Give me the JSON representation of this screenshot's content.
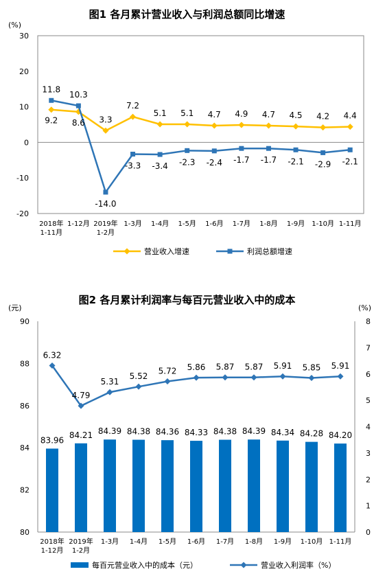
{
  "chart_data": [
    {
      "type": "line",
      "title": "图1  各月累计营业收入与利润总额同比增速",
      "ylabel": "(%)",
      "ylim": [
        -20,
        30
      ],
      "yticks": [
        "30",
        "20",
        "10",
        "0",
        "-10",
        "-20"
      ],
      "categories": [
        "2018年\n1-11月",
        "1-12月",
        "2019年\n1-2月",
        "1-3月",
        "1-4月",
        "1-5月",
        "1-6月",
        "1-7月",
        "1-8月",
        "1-9月",
        "1-10月",
        "1-11月"
      ],
      "series": [
        {
          "name": "营业收入增速",
          "color": "#FFC000",
          "values": [
            9.2,
            8.6,
            3.3,
            7.2,
            5.1,
            5.1,
            4.7,
            4.9,
            4.7,
            4.5,
            4.2,
            4.4
          ],
          "labels": [
            "9.2",
            "8.6",
            "3.3",
            "7.2",
            "5.1",
            "5.1",
            "4.7",
            "4.9",
            "4.7",
            "4.5",
            "4.2",
            "4.4"
          ]
        },
        {
          "name": "利润总额增速",
          "color": "#2E75B6",
          "values": [
            11.8,
            10.3,
            -14.0,
            -3.3,
            -3.4,
            -2.3,
            -2.4,
            -1.7,
            -1.7,
            -2.1,
            -2.9,
            -2.1
          ],
          "labels": [
            "11.8",
            "10.3",
            "-14.0",
            "-3.3",
            "-3.4",
            "-2.3",
            "-2.4",
            "-1.7",
            "-1.7",
            "-2.1",
            "-2.9",
            "-2.1"
          ]
        }
      ],
      "legend": "bottom",
      "grid": false
    },
    {
      "type": "bar+line",
      "title": "图2  各月累计利润率与每百元营业收入中的成本",
      "ylabel_left": "(元)",
      "ylabel_right": "(%)",
      "ylim_left": [
        80,
        90
      ],
      "ylim_right": [
        0,
        8
      ],
      "yticks_left": [
        "90",
        "88",
        "86",
        "84",
        "82",
        "80"
      ],
      "yticks_right": [
        "8",
        "7",
        "6",
        "5",
        "4",
        "3",
        "2",
        "1",
        "0"
      ],
      "categories": [
        "2018年\n1-12月",
        "2019年\n1-2月",
        "1-3月",
        "1-4月",
        "1-5月",
        "1-6月",
        "1-7月",
        "1-8月",
        "1-9月",
        "1-10月",
        "1-11月"
      ],
      "series": [
        {
          "name": "每百元营业收入中的成本（元）",
          "type": "bar",
          "axis": "left",
          "color": "#0070C0",
          "values": [
            83.96,
            84.21,
            84.39,
            84.38,
            84.36,
            84.33,
            84.38,
            84.39,
            84.34,
            84.28,
            84.2
          ],
          "labels": [
            "83.96",
            "84.21",
            "84.39",
            "84.38",
            "84.36",
            "84.33",
            "84.38",
            "84.39",
            "84.34",
            "84.28",
            "84.20"
          ]
        },
        {
          "name": "营业收入利润率（%）",
          "type": "line",
          "axis": "right",
          "color": "#2E75B6",
          "values": [
            6.32,
            4.79,
            5.31,
            5.52,
            5.72,
            5.86,
            5.87,
            5.87,
            5.91,
            5.85,
            5.91
          ],
          "labels": [
            "6.32",
            "4.79",
            "5.31",
            "5.52",
            "5.72",
            "5.86",
            "5.87",
            "5.87",
            "5.91",
            "5.85",
            "5.91"
          ]
        }
      ],
      "legend": "bottom",
      "grid": false
    }
  ]
}
